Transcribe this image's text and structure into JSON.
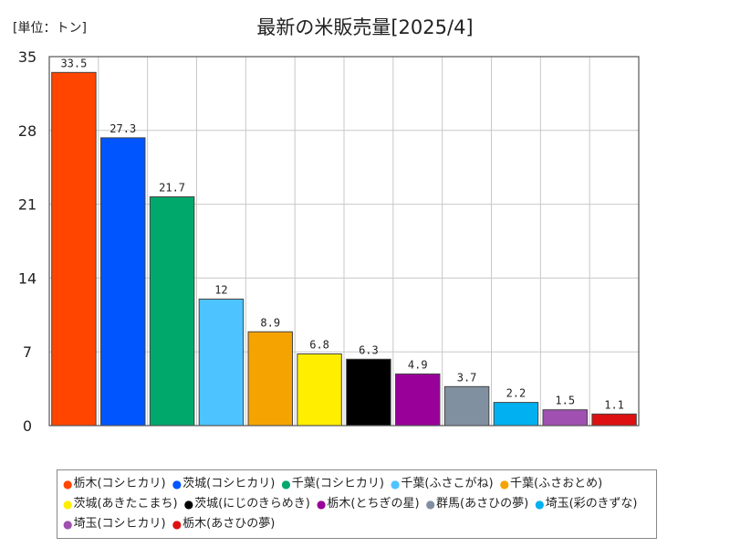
{
  "chart_data": {
    "type": "bar",
    "title": "最新の米販売量[2025/4]",
    "unit": "[単位：トン]",
    "categories": [
      "栃木(コシヒカリ)",
      "茨城(コシヒカリ)",
      "千葉(コシヒカリ)",
      "千葉(ふさこがね)",
      "千葉(ふさおとめ)",
      "茨城(あきたこまち)",
      "茨城(にじのきらめき)",
      "栃木(とちぎの星)",
      "群馬(あさひの夢)",
      "埼玉(彩のきずな)",
      "埼玉(コシヒカリ)",
      "栃木(あさひの夢)"
    ],
    "values": [
      33.5,
      27.3,
      21.7,
      12,
      8.9,
      6.8,
      6.3,
      4.9,
      3.7,
      2.2,
      1.5,
      1.1
    ],
    "value_labels": [
      "33.5",
      "27.3",
      "21.7",
      "12",
      "8.9",
      "6.8",
      "6.3",
      "4.9",
      "3.7",
      "2.2",
      "1.5",
      "1.1"
    ],
    "colors": [
      "#ff4500",
      "#0055ff",
      "#00a86b",
      "#4dc3ff",
      "#f5a300",
      "#ffee00",
      "#000000",
      "#990099",
      "#8090a0",
      "#00b0f0",
      "#a050b0",
      "#dd1111"
    ],
    "ylim": [
      0,
      35
    ],
    "yticks": [
      0,
      7,
      14,
      21,
      28,
      35
    ],
    "grid": true,
    "legend_position": "bottom"
  }
}
